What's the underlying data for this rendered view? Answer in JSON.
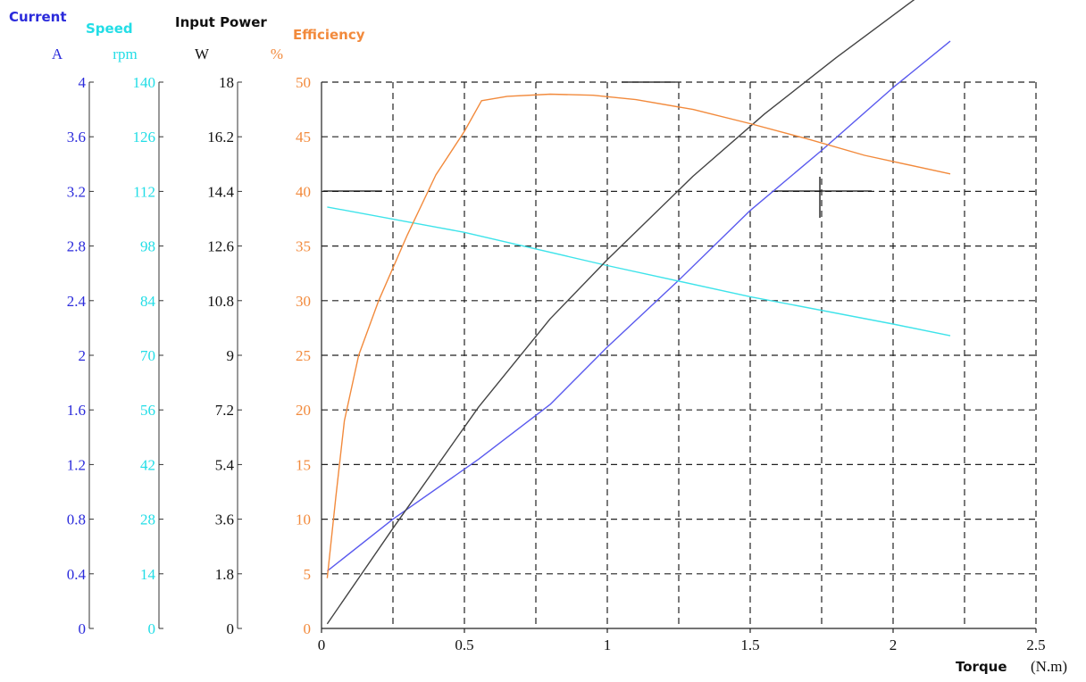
{
  "chart_data": {
    "type": "line",
    "xlabel": "Torque",
    "xunit": "(N.m)",
    "xlim": [
      0,
      2.5
    ],
    "xticks": [
      "0",
      "0.5",
      "1",
      "1.5",
      "2",
      "2.5"
    ],
    "grid": true,
    "axes": [
      {
        "name": "Current",
        "unit": "A",
        "color": "#2b2bdb",
        "ylim": [
          0,
          4
        ],
        "ticks": [
          "0",
          "0.4",
          "0.8",
          "1.2",
          "1.6",
          "2",
          "2.4",
          "2.8",
          "3.2",
          "3.6",
          "4"
        ]
      },
      {
        "name": "Speed",
        "unit": "rpm",
        "color": "#22dde6",
        "ylim": [
          0,
          140
        ],
        "ticks": [
          "0",
          "14",
          "28",
          "42",
          "56",
          "70",
          "84",
          "98",
          "112",
          "126",
          "140"
        ]
      },
      {
        "name": "Input Power",
        "unit": "W",
        "color": "#111111",
        "ylim": [
          0,
          18
        ],
        "ticks": [
          "0",
          "1.8",
          "3.6",
          "5.4",
          "7.2",
          "9",
          "10.8",
          "12.6",
          "14.4",
          "16.2",
          "18"
        ]
      },
      {
        "name": "Efficiency",
        "unit": "%",
        "color": "#f28a3c",
        "ylim": [
          0,
          50
        ],
        "ticks": [
          "0",
          "5",
          "10",
          "15",
          "20",
          "25",
          "30",
          "35",
          "40",
          "45",
          "50"
        ]
      }
    ],
    "series": [
      {
        "axis": 0,
        "color": "#5a5aee",
        "x": [
          0.02,
          0.25,
          0.55,
          0.8,
          1.0,
          1.25,
          1.5,
          1.75,
          2.0,
          2.2
        ],
        "y": [
          0.42,
          0.8,
          1.24,
          1.64,
          2.06,
          2.55,
          3.06,
          3.5,
          3.96,
          4.3
        ]
      },
      {
        "axis": 1,
        "color": "#3ee3ea",
        "x": [
          0.02,
          0.5,
          1.0,
          1.5,
          2.0,
          2.2
        ],
        "y": [
          108,
          101.5,
          93,
          85,
          78,
          75
        ]
      },
      {
        "axis": 2,
        "color": "#444444",
        "x": [
          0.02,
          0.25,
          0.55,
          0.8,
          1.0,
          1.3,
          1.55,
          1.8,
          2.0,
          2.2
        ],
        "y": [
          0.15,
          3.3,
          7.3,
          10.2,
          12.15,
          14.9,
          16.95,
          18.8,
          20.2,
          21.6
        ]
      },
      {
        "axis": 3,
        "color": "#f28a3c",
        "x": [
          0.02,
          0.05,
          0.08,
          0.13,
          0.2,
          0.3,
          0.4,
          0.5,
          0.56,
          0.65,
          0.8,
          0.95,
          1.1,
          1.3,
          1.5,
          1.7,
          1.9,
          2.2
        ],
        "y": [
          4.6,
          12,
          19,
          25,
          30,
          36,
          41.5,
          45.5,
          48.3,
          48.7,
          48.9,
          48.8,
          48.4,
          47.5,
          46.2,
          44.8,
          43.3,
          41.6
        ]
      }
    ]
  }
}
